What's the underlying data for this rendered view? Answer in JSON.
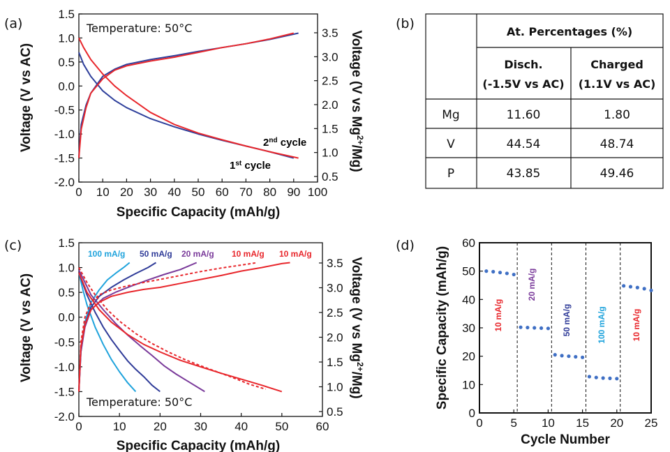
{
  "panel_labels": [
    "(a)",
    "(b)",
    "(c)",
    "(d)"
  ],
  "colors": {
    "red": "#e8262b",
    "blue": "#2e3f9b",
    "light_blue": "#1fa3dc",
    "dark_blue": "#2f3b98",
    "purple": "#7a3a9a",
    "marker": "#3f6fc4",
    "axis": "#111111"
  },
  "chart_data": [
    {
      "panel": "(a)",
      "type": "line",
      "annotation": "Temperature: 50°C",
      "xlabel": "Specific Capacity (mAh/g)",
      "ylabel": "Voltage (V vs AC)",
      "y2label_parts": [
        "Voltage (V vs Mg",
        "2+",
        "/Mg)"
      ],
      "xlim": [
        0,
        100
      ],
      "ylim": [
        -2.0,
        1.5
      ],
      "y2lim": [
        0.5,
        3.5
      ],
      "xticks": [
        "0",
        "10",
        "20",
        "30",
        "40",
        "50",
        "60",
        "70",
        "80",
        "90",
        "100"
      ],
      "yticks": [
        "1.5",
        "1.0",
        "0.5",
        "0.0",
        "-0.5",
        "-1.0",
        "-1.5",
        "-2.0"
      ],
      "y2ticks": [
        "3.5",
        "3.0",
        "2.5",
        "2.0",
        "1.5",
        "1.0",
        "0.5"
      ],
      "legend_labels": [
        {
          "base": "2",
          "sup": "nd",
          "rest": " cycle",
          "color": "#e8262b"
        },
        {
          "base": "1",
          "sup": "st",
          "rest": " cycle",
          "color": "#2e3f9b"
        }
      ],
      "series": [
        {
          "color": "#2e3f9b",
          "branch": "discharge",
          "x": [
            0,
            2,
            5,
            10,
            15,
            20,
            30,
            40,
            50,
            60,
            70,
            80,
            90
          ],
          "y": [
            0.7,
            0.45,
            0.2,
            -0.1,
            -0.3,
            -0.45,
            -0.68,
            -0.85,
            -1.0,
            -1.13,
            -1.25,
            -1.37,
            -1.5
          ]
        },
        {
          "color": "#2e3f9b",
          "branch": "charge",
          "x": [
            0,
            0.5,
            1,
            3,
            5,
            10,
            15,
            20,
            30,
            40,
            50,
            60,
            70,
            80,
            92
          ],
          "y": [
            -1.5,
            -1.1,
            -0.8,
            -0.4,
            -0.15,
            0.2,
            0.35,
            0.45,
            0.55,
            0.63,
            0.72,
            0.8,
            0.88,
            0.97,
            1.1
          ]
        },
        {
          "color": "#e8262b",
          "branch": "discharge",
          "x": [
            0,
            2,
            5,
            10,
            15,
            20,
            30,
            40,
            50,
            60,
            70,
            80,
            92
          ],
          "y": [
            1.0,
            0.8,
            0.55,
            0.25,
            0.0,
            -0.2,
            -0.55,
            -0.8,
            -0.98,
            -1.12,
            -1.25,
            -1.37,
            -1.5
          ]
        },
        {
          "color": "#e8262b",
          "branch": "charge",
          "x": [
            0,
            0.5,
            1,
            3,
            5,
            10,
            15,
            20,
            30,
            40,
            50,
            60,
            70,
            80,
            90
          ],
          "y": [
            -1.5,
            -1.2,
            -0.9,
            -0.45,
            -0.15,
            0.15,
            0.33,
            0.42,
            0.52,
            0.6,
            0.7,
            0.8,
            0.88,
            0.98,
            1.1
          ]
        }
      ]
    },
    {
      "panel": "(c)",
      "type": "line",
      "annotation": "Temperature: 50°C",
      "xlabel": "Specific Capacity (mAh/g)",
      "ylabel": "Voltage (V vs AC)",
      "y2label_parts": [
        "Voltage (V vs Mg",
        "2+",
        "/Mg)"
      ],
      "xlim": [
        0,
        60
      ],
      "ylim": [
        -2.0,
        1.5
      ],
      "y2lim": [
        0.5,
        3.5
      ],
      "xticks": [
        "0",
        "10",
        "20",
        "30",
        "40",
        "50",
        "60"
      ],
      "yticks": [
        "1.5",
        "1.0",
        "0.5",
        "0.0",
        "-0.5",
        "-1.0",
        "-1.5",
        "-2.0"
      ],
      "y2ticks": [
        "3.5",
        "3.0",
        "2.5",
        "2.0",
        "1.5",
        "1.0",
        "0.5"
      ],
      "rate_labels": [
        {
          "text": "100 mA/g",
          "color": "#1fa3dc"
        },
        {
          "text": "50 mA/g",
          "color": "#2f3b98"
        },
        {
          "text": "20 mA/g",
          "color": "#7a3a9a"
        },
        {
          "text": "10 mA/g",
          "color": "#e8262b"
        },
        {
          "text": "10 mA/g",
          "color": "#e8262b"
        }
      ],
      "series": [
        {
          "color": "#1fa3dc",
          "dashed": false,
          "x": [
            0,
            1,
            2,
            4,
            6,
            8,
            10,
            12,
            14
          ],
          "y": [
            0.9,
            0.55,
            0.25,
            -0.2,
            -0.55,
            -0.85,
            -1.1,
            -1.32,
            -1.5
          ]
        },
        {
          "color": "#1fa3dc",
          "dashed": false,
          "x": [
            0,
            0.5,
            1.5,
            3,
            5,
            7,
            9,
            11,
            12.5
          ],
          "y": [
            -1.5,
            -0.6,
            -0.1,
            0.3,
            0.55,
            0.75,
            0.88,
            1.0,
            1.1
          ]
        },
        {
          "color": "#2f3b98",
          "dashed": false,
          "x": [
            0,
            2,
            4,
            6,
            8,
            10,
            12,
            14,
            16,
            18,
            20
          ],
          "y": [
            0.9,
            0.45,
            0.1,
            -0.2,
            -0.45,
            -0.67,
            -0.88,
            -1.05,
            -1.2,
            -1.37,
            -1.5
          ]
        },
        {
          "color": "#2f3b98",
          "dashed": false,
          "x": [
            0,
            0.5,
            1.5,
            3,
            5,
            8,
            11,
            14,
            17,
            19
          ],
          "y": [
            -1.5,
            -0.7,
            -0.15,
            0.2,
            0.42,
            0.6,
            0.75,
            0.88,
            1.0,
            1.1
          ]
        },
        {
          "color": "#7a3a9a",
          "dashed": false,
          "x": [
            0,
            3,
            6,
            9,
            12,
            15,
            18,
            21,
            24,
            27,
            31
          ],
          "y": [
            0.95,
            0.45,
            0.15,
            -0.12,
            -0.36,
            -0.57,
            -0.77,
            -0.98,
            -1.15,
            -1.3,
            -1.5
          ]
        },
        {
          "color": "#7a3a9a",
          "dashed": false,
          "x": [
            0,
            0.5,
            1.5,
            3,
            6,
            9,
            13,
            17,
            21,
            25,
            29
          ],
          "y": [
            -1.5,
            -0.7,
            -0.2,
            0.15,
            0.38,
            0.5,
            0.63,
            0.75,
            0.86,
            0.96,
            1.1
          ]
        },
        {
          "color": "#e8262b",
          "dashed": false,
          "x": [
            0,
            2,
            5,
            8,
            12,
            16,
            20,
            25,
            30,
            35,
            40,
            45,
            50
          ],
          "y": [
            0.9,
            0.5,
            0.15,
            -0.1,
            -0.35,
            -0.55,
            -0.7,
            -0.87,
            -1.0,
            -1.13,
            -1.25,
            -1.37,
            -1.5
          ]
        },
        {
          "color": "#e8262b",
          "dashed": false,
          "x": [
            0,
            0.5,
            1.5,
            3,
            5,
            8,
            12,
            16,
            20,
            25,
            30,
            35,
            40,
            45,
            50,
            52
          ],
          "y": [
            -1.5,
            -0.6,
            -0.15,
            0.15,
            0.3,
            0.42,
            0.5,
            0.56,
            0.6,
            0.68,
            0.76,
            0.84,
            0.93,
            1.0,
            1.08,
            1.1
          ]
        },
        {
          "color": "#e8262b",
          "dashed": true,
          "x": [
            0,
            2,
            4,
            7,
            10,
            14,
            18,
            22,
            26,
            30,
            34,
            38,
            42,
            46
          ],
          "y": [
            1.0,
            0.7,
            0.45,
            0.15,
            -0.08,
            -0.33,
            -0.53,
            -0.7,
            -0.85,
            -0.98,
            -1.1,
            -1.22,
            -1.35,
            -1.45
          ]
        },
        {
          "color": "#e8262b",
          "dashed": true,
          "x": [
            0,
            0.5,
            1.5,
            3,
            5,
            8,
            12,
            16,
            20,
            25,
            30,
            35,
            40,
            44
          ],
          "y": [
            -1.5,
            -0.5,
            0.0,
            0.3,
            0.45,
            0.55,
            0.63,
            0.7,
            0.76,
            0.84,
            0.92,
            0.99,
            1.05,
            1.1
          ]
        }
      ]
    },
    {
      "panel": "(d)",
      "type": "scatter",
      "xlabel": "Cycle Number",
      "ylabel": "Specific Capacity (mAh/g)",
      "xlim": [
        0,
        25
      ],
      "ylim": [
        0,
        60
      ],
      "xticks": [
        "0",
        "5",
        "10",
        "15",
        "20",
        "25"
      ],
      "yticks": [
        "60",
        "50",
        "40",
        "30",
        "20",
        "10",
        "0"
      ],
      "dividers": [
        5.5,
        10.5,
        15.5,
        20.5
      ],
      "segment_labels": [
        {
          "text": "10 mA/g",
          "color": "#e8262b"
        },
        {
          "text": "20 mA/g",
          "color": "#7a3a9a"
        },
        {
          "text": "50 mA/g",
          "color": "#2f3b98"
        },
        {
          "text": "100 mA/g",
          "color": "#1fa3dc"
        },
        {
          "text": "10 mA/g",
          "color": "#e8262b"
        }
      ],
      "x": [
        1,
        2,
        3,
        4,
        5,
        6,
        7,
        8,
        9,
        10,
        11,
        12,
        13,
        14,
        15,
        16,
        17,
        18,
        19,
        20,
        21,
        22,
        23,
        24,
        25
      ],
      "y": [
        50,
        49.8,
        49.5,
        49.2,
        48.8,
        30.2,
        30.1,
        30.0,
        29.9,
        29.8,
        20.5,
        20.2,
        20.0,
        19.8,
        19.6,
        12.8,
        12.5,
        12.3,
        12.2,
        12.1,
        44.8,
        44.5,
        44.2,
        43.8,
        43.2
      ]
    }
  ],
  "table": {
    "panel": "(b)",
    "header_group": "At. Percentages (%)",
    "columns": [
      {
        "line1": "Disch.",
        "line2": "(-1.5V vs AC)"
      },
      {
        "line1": "Charged",
        "line2": "(1.1V vs AC)"
      }
    ],
    "rows": [
      {
        "element": "Mg",
        "disch": "11.60",
        "charged": "1.80"
      },
      {
        "element": "V",
        "disch": "44.54",
        "charged": "48.74"
      },
      {
        "element": "P",
        "disch": "43.85",
        "charged": "49.46"
      }
    ]
  }
}
